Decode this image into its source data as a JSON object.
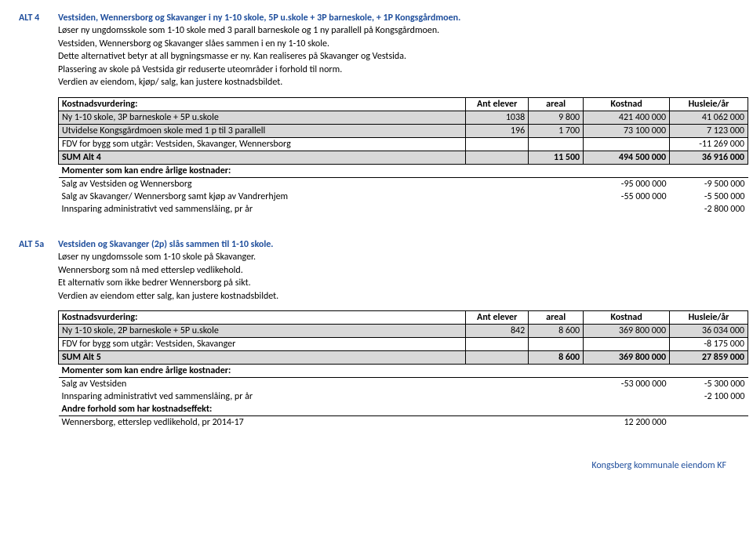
{
  "alt4": {
    "label": "ALT 4",
    "title": "Vestsiden, Wennersborg og Skavanger i ny 1-10 skole, 5P u.skole + 3P barneskole, + 1P Kongsgårdmoen.",
    "paras": [
      "Løser ny ungdomsskole som 1-10 skole med 3 parall barneskole og 1 ny parallell på Kongsgårdmoen.",
      "Vestsiden, Wennersborg og Skavanger slåes sammen i en ny 1-10 skole.",
      "Dette alternativet betyr at all bygningsmasse er ny. Kan realiseres på Skavanger og Vestsida.",
      "Plassering av skole på Vestsida gir reduserte uteområder i forhold til norm.",
      "Verdien av eiendom, kjøp/ salg, kan justere kostnadsbildet."
    ],
    "table": {
      "headers": [
        "Kostnadsvurdering:",
        "Ant elever",
        "areal",
        "Kostnad",
        "Husleie/år"
      ],
      "rows": [
        {
          "desc": "Ny 1-10 skole, 3P barneskole + 5P u.skole",
          "c1": "1038",
          "c2": "9 800",
          "c3": "421 400 000",
          "c4": "41 062 000",
          "shaded": true,
          "boxed": true
        },
        {
          "desc": "Utvidelse Kongsgårdmoen skole med 1 p til 3 parallell",
          "c1": "196",
          "c2": "1 700",
          "c3": "73 100 000",
          "c4": "7 123 000",
          "shaded": true,
          "boxed": true
        },
        {
          "desc": "FDV for bygg som utgår: Vestsiden, Skavanger, Wennersborg",
          "c1": "",
          "c2": "",
          "c3": "",
          "c4": "-11 269 000",
          "shaded": false,
          "boxed": true
        },
        {
          "desc": "SUM Alt 4",
          "c1": "",
          "c2": "11 500",
          "c3": "494 500 000",
          "c4": "36 916 000",
          "shaded": true,
          "boxed": true,
          "sum": true
        }
      ],
      "momentHdr": "Momenter som kan endre årlige kostnader:",
      "momentRows": [
        {
          "desc": "Salg av Vestsiden og Wennersborg",
          "c3": "-95 000 000",
          "c4": "-9 500 000"
        },
        {
          "desc": "Salg av Skavanger/ Wennersborg samt kjøp av Vandrerhjem",
          "c3": "-55 000 000",
          "c4": "-5 500 000"
        },
        {
          "desc": "Innsparing administrativt ved sammenslåing, pr år",
          "c3": "",
          "c4": "-2 800 000"
        }
      ]
    }
  },
  "alt5a": {
    "label": "ALT 5a",
    "title": "Vestsiden og Skavanger (2p) slås sammen til 1-10 skole.",
    "paras": [
      "Løser ny ungdomssole som 1-10 skole på Skavanger.",
      "Wennersborg som nå med etterslep vedlikehold.",
      "Et alternativ som ikke bedrer Wennersborg på sikt.",
      "Verdien av eiendom etter salg, kan justere kostnadsbildet."
    ],
    "table": {
      "headers": [
        "Kostnadsvurdering:",
        "Ant elever",
        "areal",
        "Kostnad",
        "Husleie/år"
      ],
      "rows": [
        {
          "desc": "Ny 1-10 skole, 2P barneskole + 5P u.skole",
          "c1": "842",
          "c2": "8 600",
          "c3": "369 800 000",
          "c4": "36 034 000",
          "shaded": true,
          "boxed": true
        },
        {
          "desc": "FDV for bygg som utgår: Vestsiden, Skavanger",
          "c1": "",
          "c2": "",
          "c3": "",
          "c4": "-8 175 000",
          "shaded": false,
          "boxed": true
        },
        {
          "desc": "SUM Alt 5",
          "c1": "",
          "c2": "8 600",
          "c3": "369 800 000",
          "c4": "27 859 000",
          "shaded": true,
          "boxed": true,
          "sum": true
        }
      ],
      "momentHdr": "Momenter som kan endre årlige kostnader:",
      "momentRows": [
        {
          "desc": "Salg av Vestsiden",
          "c3": "-53 000 000",
          "c4": "-5 300 000"
        },
        {
          "desc": "Innsparing administrativt ved sammenslåing, pr år",
          "c3": "",
          "c4": "-2 100 000"
        }
      ],
      "andreHdr": "Andre forhold som har kostnadseffekt:",
      "andreRows": [
        {
          "desc": "Wennersborg, etterslep vedlikehold, pr 2014-17",
          "c3": "12 200 000",
          "c4": ""
        }
      ]
    }
  },
  "footer": "Kongsberg kommunale eiendom KF"
}
